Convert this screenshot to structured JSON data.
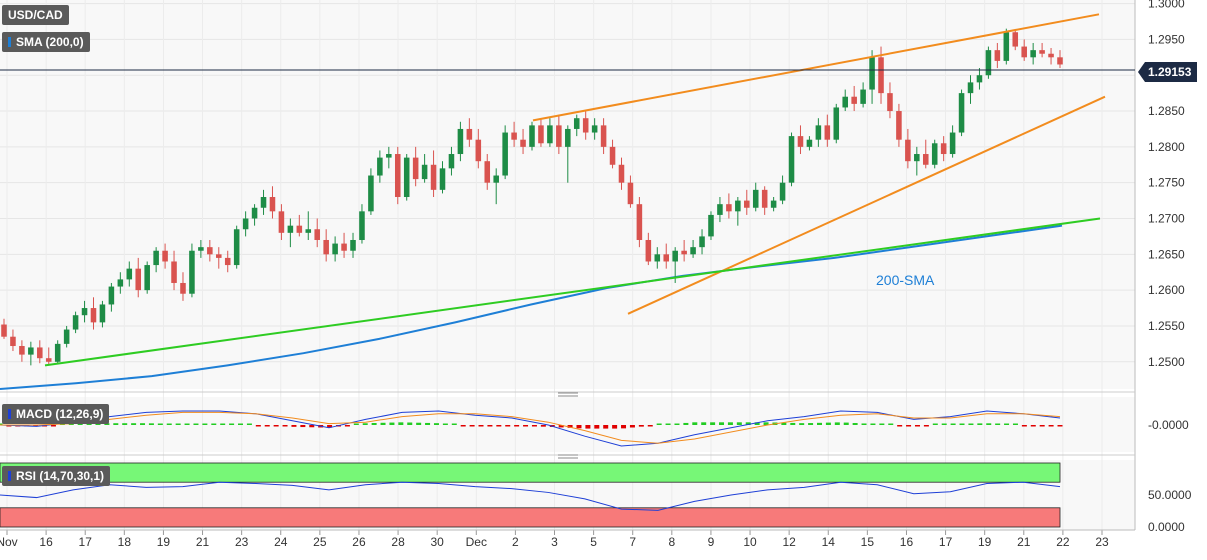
{
  "symbol_label": "USD/CAD",
  "sma_label": "SMA (200,0)",
  "macd_label": "MACD (12,26,9)",
  "rsi_label": "RSI (14,70,30,1)",
  "last_price_badge": "1.29153",
  "chart_data": [
    {
      "type": "candlestick",
      "panel": "price",
      "title": "USD/CAD",
      "ylim": [
        1.2462,
        1.3005
      ],
      "y_ticks": [
        "1.3000",
        "1.2950",
        "1.2900",
        "1.2850",
        "1.2800",
        "1.2750",
        "1.2700",
        "1.2650",
        "1.2600",
        "1.2550",
        "1.2500"
      ],
      "x_tick_labels": [
        "Nov",
        "16",
        "17",
        "18",
        "19",
        "21",
        "23",
        "24",
        "25",
        "26",
        "28",
        "30",
        "Dec",
        "2",
        "3",
        "5",
        "7",
        "8",
        "9",
        "10",
        "12",
        "14",
        "15",
        "16",
        "17",
        "19",
        "21",
        "22",
        "23"
      ],
      "candle_color_up": "#1e8c46",
      "candle_color_down": "#d9534f",
      "last_price": 1.29153,
      "candles_ohlc": [
        [
          1.2552,
          1.256,
          1.2532,
          1.2535
        ],
        [
          1.2535,
          1.2545,
          1.2515,
          1.2522
        ],
        [
          1.2522,
          1.253,
          1.25,
          1.251
        ],
        [
          1.251,
          1.2528,
          1.2495,
          1.252
        ],
        [
          1.252,
          1.253,
          1.2498,
          1.2505
        ],
        [
          1.2505,
          1.252,
          1.2496,
          1.25
        ],
        [
          1.25,
          1.253,
          1.2497,
          1.2525
        ],
        [
          1.2525,
          1.255,
          1.252,
          1.2545
        ],
        [
          1.2545,
          1.257,
          1.254,
          1.2565
        ],
        [
          1.2565,
          1.2585,
          1.2555,
          1.2575
        ],
        [
          1.2575,
          1.259,
          1.2545,
          1.2555
        ],
        [
          1.2555,
          1.2585,
          1.2548,
          1.258
        ],
        [
          1.258,
          1.261,
          1.257,
          1.2605
        ],
        [
          1.2605,
          1.2625,
          1.2595,
          1.2615
        ],
        [
          1.2615,
          1.264,
          1.2605,
          1.263
        ],
        [
          1.263,
          1.2645,
          1.259,
          1.26
        ],
        [
          1.26,
          1.264,
          1.2595,
          1.2635
        ],
        [
          1.2635,
          1.266,
          1.2625,
          1.2655
        ],
        [
          1.2655,
          1.2665,
          1.263,
          1.264
        ],
        [
          1.264,
          1.2655,
          1.26,
          1.261
        ],
        [
          1.261,
          1.2625,
          1.2585,
          1.2595
        ],
        [
          1.2595,
          1.2665,
          1.259,
          1.2655
        ],
        [
          1.2655,
          1.267,
          1.2645,
          1.266
        ],
        [
          1.266,
          1.267,
          1.264,
          1.265
        ],
        [
          1.265,
          1.266,
          1.263,
          1.2645
        ],
        [
          1.2645,
          1.2655,
          1.2625,
          1.2635
        ],
        [
          1.2635,
          1.269,
          1.263,
          1.2685
        ],
        [
          1.2685,
          1.271,
          1.2675,
          1.27
        ],
        [
          1.27,
          1.272,
          1.269,
          1.2715
        ],
        [
          1.2715,
          1.274,
          1.2705,
          1.273
        ],
        [
          1.273,
          1.2745,
          1.27,
          1.271
        ],
        [
          1.271,
          1.272,
          1.267,
          1.268
        ],
        [
          1.268,
          1.27,
          1.266,
          1.269
        ],
        [
          1.269,
          1.2705,
          1.2675,
          1.268
        ],
        [
          1.268,
          1.271,
          1.267,
          1.2685
        ],
        [
          1.2685,
          1.27,
          1.266,
          1.267
        ],
        [
          1.267,
          1.2685,
          1.264,
          1.265
        ],
        [
          1.265,
          1.2675,
          1.264,
          1.2665
        ],
        [
          1.2665,
          1.268,
          1.2645,
          1.2655
        ],
        [
          1.2655,
          1.268,
          1.2645,
          1.267
        ],
        [
          1.267,
          1.272,
          1.2665,
          1.271
        ],
        [
          1.271,
          1.277,
          1.2705,
          1.276
        ],
        [
          1.276,
          1.2795,
          1.275,
          1.2785
        ],
        [
          1.2785,
          1.28,
          1.277,
          1.279
        ],
        [
          1.279,
          1.28,
          1.272,
          1.273
        ],
        [
          1.273,
          1.279,
          1.2725,
          1.2785
        ],
        [
          1.2785,
          1.28,
          1.2745,
          1.2755
        ],
        [
          1.2755,
          1.279,
          1.275,
          1.2775
        ],
        [
          1.2775,
          1.2795,
          1.273,
          1.274
        ],
        [
          1.274,
          1.278,
          1.2735,
          1.277
        ],
        [
          1.277,
          1.28,
          1.276,
          1.279
        ],
        [
          1.279,
          1.2835,
          1.278,
          1.2825
        ],
        [
          1.2825,
          1.284,
          1.28,
          1.281
        ],
        [
          1.281,
          1.2825,
          1.277,
          1.278
        ],
        [
          1.278,
          1.279,
          1.274,
          1.275
        ],
        [
          1.275,
          1.277,
          1.272,
          1.276
        ],
        [
          1.276,
          1.283,
          1.2755,
          1.282
        ],
        [
          1.282,
          1.2835,
          1.28,
          1.281
        ],
        [
          1.281,
          1.2825,
          1.279,
          1.28
        ],
        [
          1.28,
          1.2835,
          1.2795,
          1.283
        ],
        [
          1.283,
          1.284,
          1.28,
          1.2805
        ],
        [
          1.2805,
          1.284,
          1.28,
          1.283
        ],
        [
          1.283,
          1.2845,
          1.279,
          1.28
        ],
        [
          1.28,
          1.283,
          1.275,
          1.2825
        ],
        [
          1.2825,
          1.2845,
          1.2815,
          1.284
        ],
        [
          1.284,
          1.285,
          1.281,
          1.282
        ],
        [
          1.282,
          1.284,
          1.281,
          1.283
        ],
        [
          1.283,
          1.284,
          1.279,
          1.28
        ],
        [
          1.28,
          1.281,
          1.277,
          1.2775
        ],
        [
          1.2775,
          1.2785,
          1.274,
          1.275
        ],
        [
          1.275,
          1.276,
          1.2715,
          1.272
        ],
        [
          1.272,
          1.273,
          1.266,
          1.267
        ],
        [
          1.267,
          1.268,
          1.2635,
          1.264
        ],
        [
          1.264,
          1.266,
          1.263,
          1.265
        ],
        [
          1.265,
          1.2665,
          1.263,
          1.264
        ],
        [
          1.264,
          1.266,
          1.261,
          1.2655
        ],
        [
          1.2655,
          1.267,
          1.264,
          1.265
        ],
        [
          1.265,
          1.267,
          1.2645,
          1.266
        ],
        [
          1.266,
          1.2685,
          1.265,
          1.2675
        ],
        [
          1.2675,
          1.271,
          1.267,
          1.2705
        ],
        [
          1.2705,
          1.273,
          1.2695,
          1.272
        ],
        [
          1.272,
          1.2735,
          1.27,
          1.271
        ],
        [
          1.271,
          1.273,
          1.269,
          1.2725
        ],
        [
          1.2725,
          1.274,
          1.2705,
          1.2715
        ],
        [
          1.2715,
          1.275,
          1.271,
          1.274
        ],
        [
          1.274,
          1.2745,
          1.2705,
          1.2715
        ],
        [
          1.2715,
          1.273,
          1.271,
          1.2725
        ],
        [
          1.2725,
          1.276,
          1.272,
          1.275
        ],
        [
          1.275,
          1.282,
          1.2745,
          1.2815
        ],
        [
          1.2815,
          1.283,
          1.279,
          1.28
        ],
        [
          1.28,
          1.2815,
          1.2795,
          1.281
        ],
        [
          1.281,
          1.284,
          1.28,
          1.283
        ],
        [
          1.283,
          1.2845,
          1.28,
          1.281
        ],
        [
          1.281,
          1.286,
          1.2805,
          1.2855
        ],
        [
          1.2855,
          1.288,
          1.285,
          1.287
        ],
        [
          1.287,
          1.2885,
          1.285,
          1.286
        ],
        [
          1.286,
          1.289,
          1.2855,
          1.288
        ],
        [
          1.288,
          1.2935,
          1.286,
          1.2925
        ],
        [
          1.2925,
          1.294,
          1.286,
          1.2875
        ],
        [
          1.2875,
          1.289,
          1.284,
          1.285
        ],
        [
          1.285,
          1.286,
          1.28,
          1.281
        ],
        [
          1.281,
          1.2825,
          1.277,
          1.278
        ],
        [
          1.278,
          1.28,
          1.276,
          1.279
        ],
        [
          1.279,
          1.281,
          1.277,
          1.2775
        ],
        [
          1.2775,
          1.281,
          1.277,
          1.2805
        ],
        [
          1.2805,
          1.2815,
          1.278,
          1.279
        ],
        [
          1.279,
          1.283,
          1.2785,
          1.282
        ],
        [
          1.282,
          1.288,
          1.2815,
          1.2875
        ],
        [
          1.2875,
          1.29,
          1.286,
          1.289
        ],
        [
          1.289,
          1.291,
          1.288,
          1.29
        ],
        [
          1.29,
          1.294,
          1.2895,
          1.2935
        ],
        [
          1.2935,
          1.2945,
          1.291,
          1.292
        ],
        [
          1.292,
          1.2965,
          1.2915,
          1.296
        ],
        [
          1.296,
          1.2962,
          1.2935,
          1.294
        ],
        [
          1.294,
          1.295,
          1.292,
          1.2925
        ],
        [
          1.2925,
          1.2945,
          1.2915,
          1.2935
        ],
        [
          1.2935,
          1.2945,
          1.2925,
          1.293
        ],
        [
          1.293,
          1.2938,
          1.2915,
          1.2925
        ],
        [
          1.2925,
          1.2935,
          1.291,
          1.2915
        ]
      ],
      "sma_200_label": "200-SMA",
      "sma_200_color": "#1e7fd6",
      "sma_200": [
        1.2462,
        1.247,
        1.248,
        1.2495,
        1.2512,
        1.2532,
        1.2555,
        1.258,
        1.2603,
        1.262,
        1.2633,
        1.2645,
        1.266,
        1.2675,
        1.269
      ],
      "trendlines": [
        {
          "color": "#f28c1e",
          "points": [
            [
              1.2837
            ],
            [
              1.2985
            ]
          ],
          "name": "upper resistance line"
        },
        {
          "color": "#f28c1e",
          "points": [
            [
              1.2567
            ],
            [
              1.287
            ]
          ],
          "name": "lower support line"
        },
        {
          "color": "#2ecc22",
          "points": [
            [
              1.2495
            ],
            [
              1.27
            ]
          ],
          "name": "long-term support line"
        }
      ],
      "grid": true
    },
    {
      "type": "histogram+line",
      "panel": "macd",
      "title": "MACD (12,26,9)",
      "y_ticks": [
        "-0.0000"
      ],
      "series": [
        {
          "color": "#1e3fd6",
          "values": [
            0.0,
            -0.1,
            0.2,
            0.6,
            0.9,
            1.0,
            1.0,
            0.8,
            0.3,
            -0.2,
            0.4,
            0.9,
            1.0,
            0.7,
            0.5,
            0.0,
            -0.8,
            -1.5,
            -1.3,
            -0.7,
            -0.2,
            0.3,
            0.6,
            1.0,
            0.9,
            0.4,
            0.6,
            1.0,
            0.8,
            0.5
          ]
        },
        {
          "color": "#f28c1e",
          "values": [
            0.0,
            0.0,
            0.1,
            0.4,
            0.7,
            0.9,
            0.9,
            0.8,
            0.5,
            0.1,
            0.2,
            0.6,
            0.8,
            0.8,
            0.6,
            0.2,
            -0.4,
            -1.1,
            -1.3,
            -1.0,
            -0.5,
            0.0,
            0.4,
            0.7,
            0.8,
            0.5,
            0.5,
            0.8,
            0.8,
            0.6
          ]
        }
      ],
      "histogram_colors": {
        "positive": "#22cc22",
        "negative": "#e00000"
      }
    },
    {
      "type": "line",
      "panel": "rsi",
      "title": "RSI (14,70,30,1)",
      "y_ticks": [
        "50.0000",
        "0.0000"
      ],
      "overbought_color": "#77f777",
      "oversold_color": "#f77a7a",
      "series": [
        {
          "color": "#1e3fd6",
          "values": [
            50,
            46,
            58,
            66,
            62,
            63,
            70,
            68,
            65,
            58,
            66,
            70,
            68,
            63,
            60,
            54,
            44,
            28,
            26,
            40,
            50,
            58,
            62,
            70,
            66,
            52,
            55,
            68,
            70,
            63
          ]
        }
      ]
    }
  ]
}
